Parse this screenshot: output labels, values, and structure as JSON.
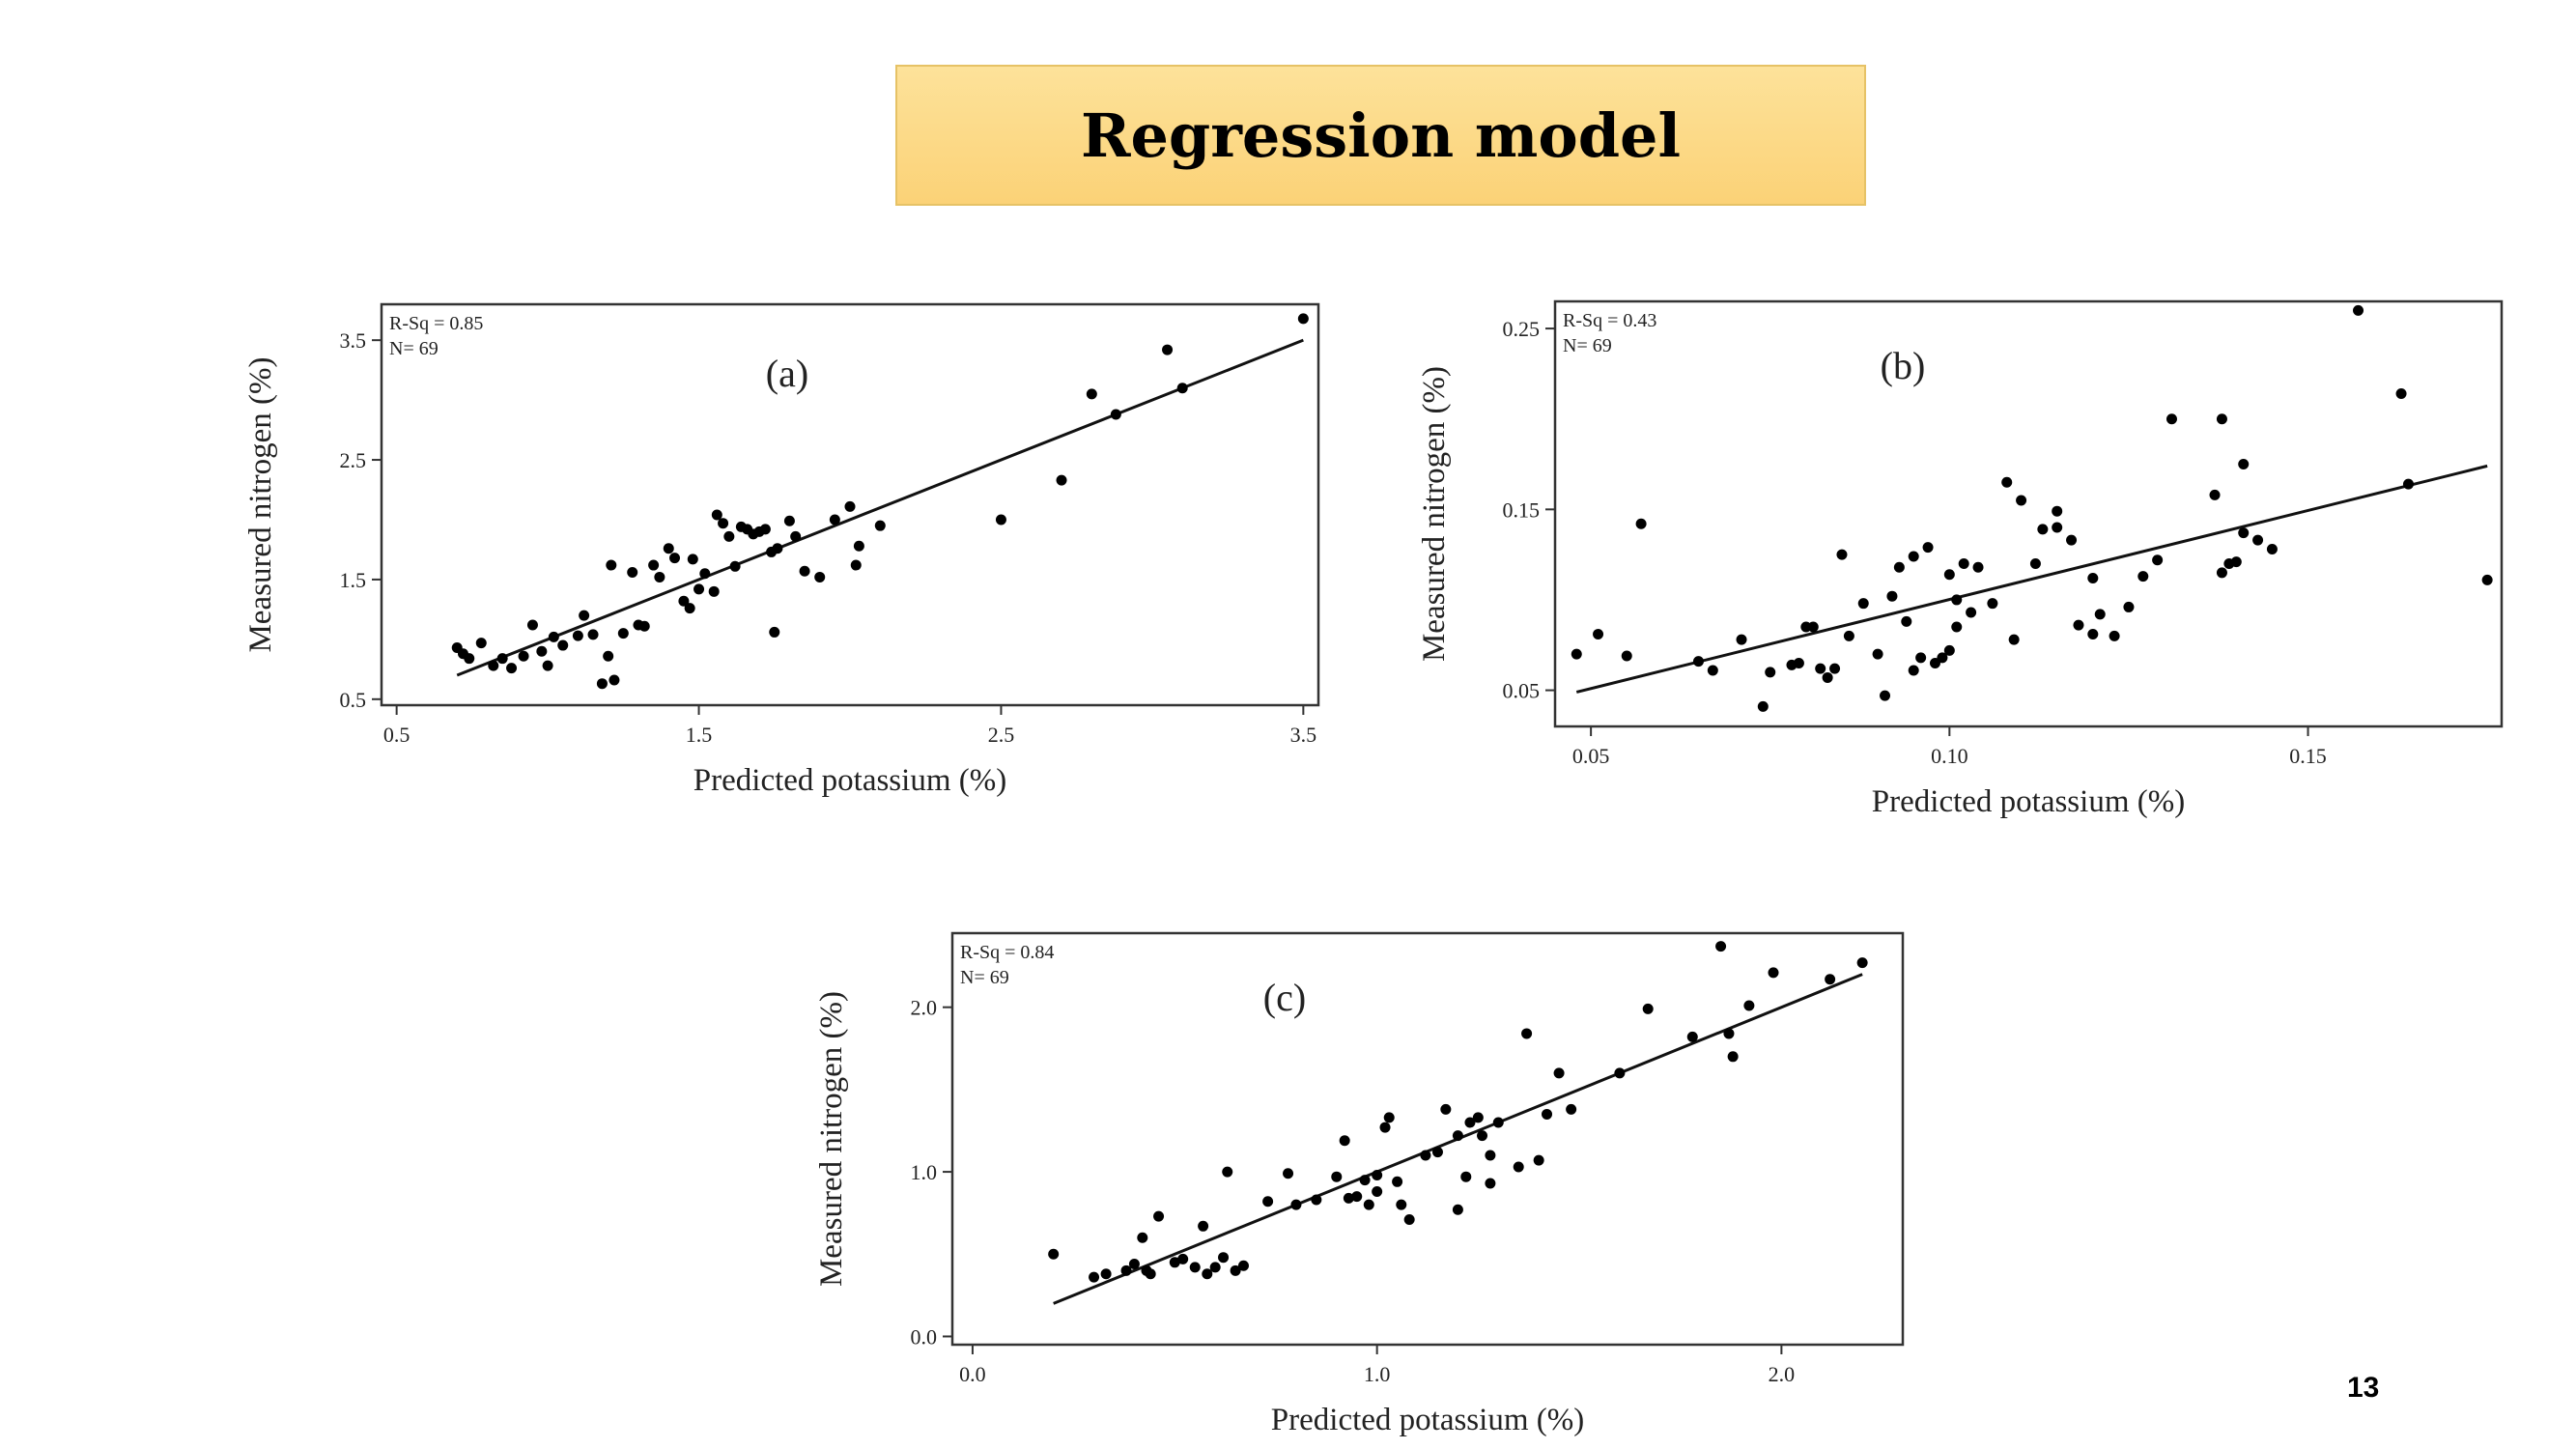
{
  "slide": {
    "title": "Regression model",
    "page_number": "13"
  },
  "chart_data": [
    {
      "type": "scatter",
      "panel_label": "(a)",
      "stats": [
        "R-Sq = 0.85",
        "N= 69"
      ],
      "xlabel": "Predicted potassium (%)",
      "ylabel": "Measured nitrogen (%)",
      "xlim": [
        0.45,
        3.55
      ],
      "ylim": [
        0.45,
        3.8
      ],
      "xticks": [
        0.5,
        1.5,
        2.5,
        3.5
      ],
      "xtick_labels": [
        "0.5",
        "1.5",
        "2.5",
        "3.5"
      ],
      "yticks": [
        0.5,
        1.5,
        2.5,
        3.5
      ],
      "ytick_labels": [
        "0.5",
        "1.5",
        "2.5",
        "3.5"
      ],
      "fit_line": {
        "x": [
          0.7,
          3.5
        ],
        "y": [
          0.7,
          3.5
        ]
      },
      "points": [
        [
          0.7,
          0.93
        ],
        [
          0.72,
          0.88
        ],
        [
          0.74,
          0.84
        ],
        [
          0.78,
          0.97
        ],
        [
          0.82,
          0.78
        ],
        [
          0.85,
          0.84
        ],
        [
          0.88,
          0.76
        ],
        [
          0.92,
          0.86
        ],
        [
          0.95,
          1.12
        ],
        [
          0.98,
          0.9
        ],
        [
          1.0,
          0.78
        ],
        [
          1.02,
          1.02
        ],
        [
          1.05,
          0.95
        ],
        [
          1.1,
          1.03
        ],
        [
          1.12,
          1.2
        ],
        [
          1.15,
          1.04
        ],
        [
          1.18,
          0.63
        ],
        [
          1.2,
          0.86
        ],
        [
          1.21,
          1.62
        ],
        [
          1.22,
          0.66
        ],
        [
          1.25,
          1.05
        ],
        [
          1.28,
          1.56
        ],
        [
          1.3,
          1.12
        ],
        [
          1.32,
          1.11
        ],
        [
          1.35,
          1.62
        ],
        [
          1.37,
          1.52
        ],
        [
          1.4,
          1.76
        ],
        [
          1.42,
          1.68
        ],
        [
          1.45,
          1.32
        ],
        [
          1.47,
          1.26
        ],
        [
          1.48,
          1.67
        ],
        [
          1.5,
          1.42
        ],
        [
          1.52,
          1.55
        ],
        [
          1.55,
          1.4
        ],
        [
          1.56,
          2.04
        ],
        [
          1.58,
          1.97
        ],
        [
          1.6,
          1.86
        ],
        [
          1.62,
          1.61
        ],
        [
          1.64,
          1.94
        ],
        [
          1.66,
          1.92
        ],
        [
          1.68,
          1.88
        ],
        [
          1.7,
          1.9
        ],
        [
          1.72,
          1.92
        ],
        [
          1.74,
          1.73
        ],
        [
          1.75,
          1.06
        ],
        [
          1.76,
          1.76
        ],
        [
          1.8,
          1.99
        ],
        [
          1.82,
          1.86
        ],
        [
          1.85,
          1.57
        ],
        [
          1.9,
          1.52
        ],
        [
          1.95,
          2.0
        ],
        [
          2.0,
          2.11
        ],
        [
          2.02,
          1.62
        ],
        [
          2.03,
          1.78
        ],
        [
          2.1,
          1.95
        ],
        [
          2.5,
          2.0
        ],
        [
          2.7,
          2.33
        ],
        [
          2.8,
          3.05
        ],
        [
          2.88,
          2.88
        ],
        [
          3.05,
          3.42
        ],
        [
          3.1,
          3.1
        ],
        [
          3.5,
          3.68
        ]
      ]
    },
    {
      "type": "scatter",
      "panel_label": "(b)",
      "stats": [
        "R-Sq = 0.43",
        "N= 69"
      ],
      "xlabel": "Predicted potassium (%)",
      "ylabel": "Measured nitrogen (%)",
      "xlim": [
        0.045,
        0.177
      ],
      "ylim": [
        0.03,
        0.265
      ],
      "xticks": [
        0.05,
        0.1,
        0.15
      ],
      "xtick_labels": [
        "0.05",
        "0.10",
        "0.15"
      ],
      "yticks": [
        0.05,
        0.15,
        0.25
      ],
      "ytick_labels": [
        "0.05",
        "0.15",
        "0.25"
      ],
      "fit_line": {
        "x": [
          0.048,
          0.175
        ],
        "y": [
          0.049,
          0.174
        ]
      },
      "points": [
        [
          0.048,
          0.07
        ],
        [
          0.051,
          0.081
        ],
        [
          0.055,
          0.069
        ],
        [
          0.057,
          0.142
        ],
        [
          0.065,
          0.066
        ],
        [
          0.067,
          0.061
        ],
        [
          0.071,
          0.078
        ],
        [
          0.074,
          0.041
        ],
        [
          0.075,
          0.06
        ],
        [
          0.078,
          0.064
        ],
        [
          0.079,
          0.065
        ],
        [
          0.08,
          0.085
        ],
        [
          0.081,
          0.085
        ],
        [
          0.082,
          0.062
        ],
        [
          0.083,
          0.057
        ],
        [
          0.084,
          0.062
        ],
        [
          0.085,
          0.125
        ],
        [
          0.086,
          0.08
        ],
        [
          0.088,
          0.098
        ],
        [
          0.09,
          0.07
        ],
        [
          0.091,
          0.047
        ],
        [
          0.092,
          0.102
        ],
        [
          0.093,
          0.118
        ],
        [
          0.094,
          0.088
        ],
        [
          0.095,
          0.124
        ],
        [
          0.095,
          0.061
        ],
        [
          0.096,
          0.068
        ],
        [
          0.097,
          0.129
        ],
        [
          0.098,
          0.065
        ],
        [
          0.099,
          0.068
        ],
        [
          0.1,
          0.072
        ],
        [
          0.1,
          0.114
        ],
        [
          0.101,
          0.085
        ],
        [
          0.101,
          0.1
        ],
        [
          0.102,
          0.12
        ],
        [
          0.103,
          0.093
        ],
        [
          0.104,
          0.118
        ],
        [
          0.106,
          0.098
        ],
        [
          0.108,
          0.165
        ],
        [
          0.109,
          0.078
        ],
        [
          0.11,
          0.155
        ],
        [
          0.112,
          0.12
        ],
        [
          0.113,
          0.139
        ],
        [
          0.115,
          0.14
        ],
        [
          0.115,
          0.149
        ],
        [
          0.117,
          0.133
        ],
        [
          0.118,
          0.086
        ],
        [
          0.12,
          0.081
        ],
        [
          0.12,
          0.112
        ],
        [
          0.121,
          0.092
        ],
        [
          0.123,
          0.08
        ],
        [
          0.125,
          0.096
        ],
        [
          0.127,
          0.113
        ],
        [
          0.129,
          0.122
        ],
        [
          0.131,
          0.2
        ],
        [
          0.137,
          0.158
        ],
        [
          0.138,
          0.2
        ],
        [
          0.138,
          0.115
        ],
        [
          0.139,
          0.12
        ],
        [
          0.14,
          0.121
        ],
        [
          0.141,
          0.175
        ],
        [
          0.141,
          0.137
        ],
        [
          0.143,
          0.133
        ],
        [
          0.145,
          0.128
        ],
        [
          0.157,
          0.26
        ],
        [
          0.163,
          0.214
        ],
        [
          0.164,
          0.164
        ],
        [
          0.175,
          0.111
        ]
      ]
    },
    {
      "type": "scatter",
      "panel_label": "(c)",
      "stats": [
        "R-Sq = 0.84",
        "N= 69"
      ],
      "xlabel": "Predicted potassium (%)",
      "ylabel": "Measured nitrogen (%)",
      "xlim": [
        -0.05,
        2.3
      ],
      "ylim": [
        -0.05,
        2.45
      ],
      "xticks": [
        0.0,
        1.0,
        2.0
      ],
      "xtick_labels": [
        "0.0",
        "1.0",
        "2.0"
      ],
      "yticks": [
        0.0,
        1.0,
        2.0
      ],
      "ytick_labels": [
        "0.0",
        "1.0",
        "2.0"
      ],
      "fit_line": {
        "x": [
          0.2,
          2.2
        ],
        "y": [
          0.2,
          2.2
        ]
      },
      "points": [
        [
          0.2,
          0.5
        ],
        [
          0.3,
          0.36
        ],
        [
          0.33,
          0.38
        ],
        [
          0.38,
          0.4
        ],
        [
          0.4,
          0.44
        ],
        [
          0.42,
          0.6
        ],
        [
          0.43,
          0.4
        ],
        [
          0.44,
          0.38
        ],
        [
          0.46,
          0.73
        ],
        [
          0.5,
          0.45
        ],
        [
          0.52,
          0.47
        ],
        [
          0.55,
          0.42
        ],
        [
          0.57,
          0.67
        ],
        [
          0.58,
          0.38
        ],
        [
          0.6,
          0.42
        ],
        [
          0.62,
          0.48
        ],
        [
          0.63,
          1.0
        ],
        [
          0.65,
          0.4
        ],
        [
          0.67,
          0.43
        ],
        [
          0.73,
          0.82
        ],
        [
          0.78,
          0.99
        ],
        [
          0.8,
          0.8
        ],
        [
          0.85,
          0.83
        ],
        [
          0.9,
          0.97
        ],
        [
          0.92,
          1.19
        ],
        [
          0.93,
          0.84
        ],
        [
          0.95,
          0.85
        ],
        [
          0.97,
          0.95
        ],
        [
          0.98,
          0.8
        ],
        [
          1.0,
          0.98
        ],
        [
          1.0,
          0.88
        ],
        [
          1.02,
          1.27
        ],
        [
          1.03,
          1.33
        ],
        [
          1.05,
          0.94
        ],
        [
          1.06,
          0.8
        ],
        [
          1.08,
          0.71
        ],
        [
          1.12,
          1.1
        ],
        [
          1.15,
          1.12
        ],
        [
          1.17,
          1.38
        ],
        [
          1.2,
          1.22
        ],
        [
          1.2,
          0.77
        ],
        [
          1.22,
          0.97
        ],
        [
          1.23,
          1.3
        ],
        [
          1.25,
          1.33
        ],
        [
          1.26,
          1.22
        ],
        [
          1.28,
          1.1
        ],
        [
          1.28,
          0.93
        ],
        [
          1.3,
          1.3
        ],
        [
          1.35,
          1.03
        ],
        [
          1.37,
          1.84
        ],
        [
          1.4,
          1.07
        ],
        [
          1.42,
          1.35
        ],
        [
          1.45,
          1.6
        ],
        [
          1.48,
          1.38
        ],
        [
          1.6,
          1.6
        ],
        [
          1.67,
          1.99
        ],
        [
          1.78,
          1.82
        ],
        [
          1.85,
          2.37
        ],
        [
          1.87,
          1.84
        ],
        [
          1.88,
          1.7
        ],
        [
          1.92,
          2.01
        ],
        [
          1.98,
          2.21
        ],
        [
          2.12,
          2.17
        ],
        [
          2.2,
          2.27
        ]
      ]
    }
  ]
}
